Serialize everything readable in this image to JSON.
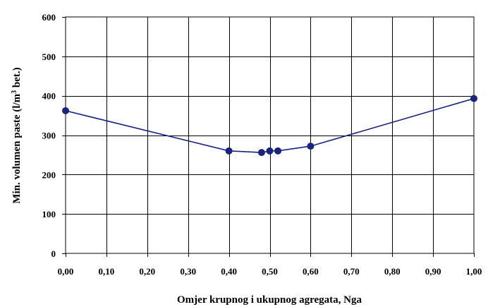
{
  "chart_data": {
    "type": "line",
    "title": "",
    "xlabel": "Omjer krupnog i ukupnog agregata, Nga",
    "ylabel_parts": {
      "before": "Min. volumen paste (l/m",
      "sup": "3",
      "after": " bet.)"
    },
    "xlim": [
      0,
      1
    ],
    "ylim": [
      0,
      600
    ],
    "xticks": [
      "0,00",
      "0,10",
      "0,20",
      "0,30",
      "0,40",
      "0,50",
      "0,60",
      "0,70",
      "0,80",
      "0,90",
      "1,00"
    ],
    "yticks": [
      "0",
      "100",
      "200",
      "300",
      "400",
      "500",
      "600"
    ],
    "grid": true,
    "legend": "none",
    "series": [
      {
        "color": "#1a237e",
        "x": [
          0.0,
          0.4,
          0.48,
          0.5,
          0.52,
          0.6,
          1.0
        ],
        "y": [
          362,
          260,
          256,
          260,
          260,
          272,
          393
        ]
      }
    ]
  }
}
